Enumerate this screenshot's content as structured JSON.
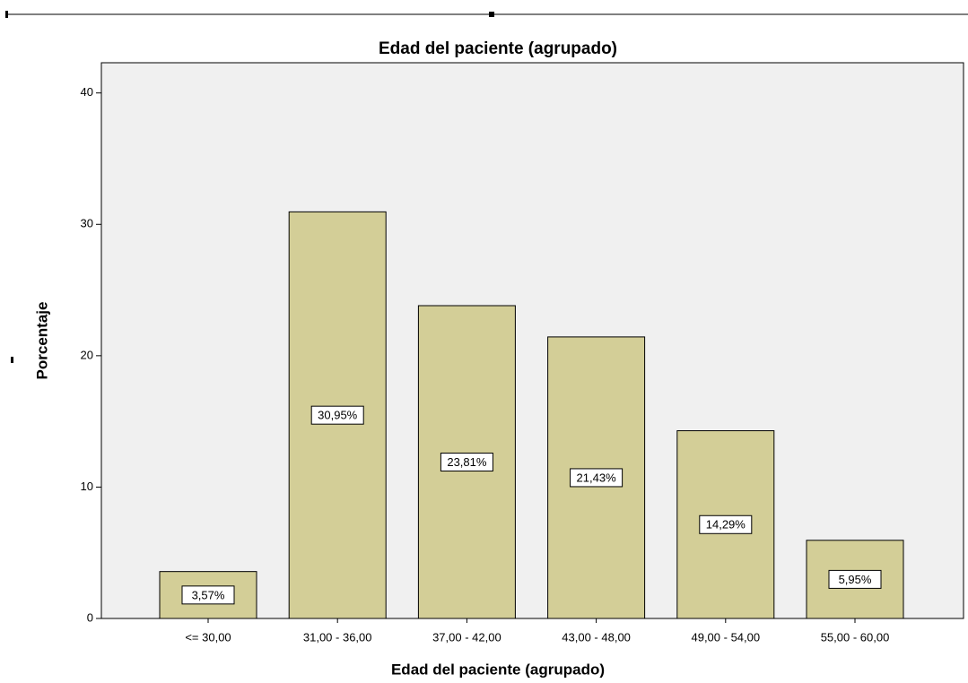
{
  "chart_data": {
    "type": "bar",
    "title": "Edad del paciente (agrupado)",
    "x_label": "Edad del paciente (agrupado)",
    "y_label": "Porcentaje",
    "categories": [
      "<= 30,00",
      "31,00 - 36,00",
      "37,00 - 42,00",
      "43,00 - 48,00",
      "49,00 - 54,00",
      "55,00 - 60,00"
    ],
    "values": [
      3.57,
      30.95,
      23.81,
      21.43,
      14.29,
      5.95
    ],
    "value_labels": [
      "3,57%",
      "30,95%",
      "23,81%",
      "21,43%",
      "14,29%",
      "5,95%"
    ],
    "color": "#d3ce97",
    "ylim": [
      0,
      42.3
    ],
    "yticks": [
      0,
      10,
      20,
      30,
      40
    ],
    "grid": false
  }
}
